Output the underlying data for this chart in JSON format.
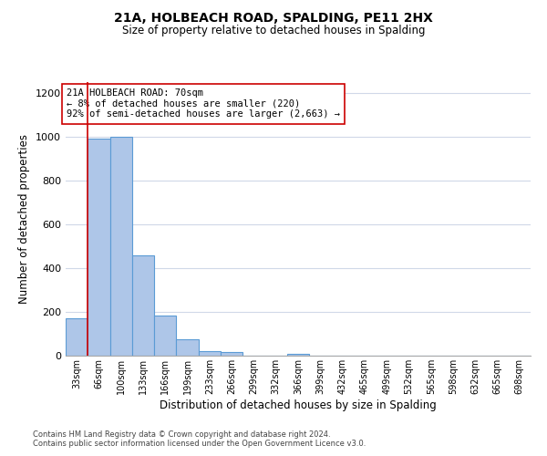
{
  "title1": "21A, HOLBEACH ROAD, SPALDING, PE11 2HX",
  "title2": "Size of property relative to detached houses in Spalding",
  "xlabel": "Distribution of detached houses by size in Spalding",
  "ylabel": "Number of detached properties",
  "bin_labels": [
    "33sqm",
    "66sqm",
    "100sqm",
    "133sqm",
    "166sqm",
    "199sqm",
    "233sqm",
    "266sqm",
    "299sqm",
    "332sqm",
    "366sqm",
    "399sqm",
    "432sqm",
    "465sqm",
    "499sqm",
    "532sqm",
    "565sqm",
    "598sqm",
    "632sqm",
    "665sqm",
    "698sqm"
  ],
  "bar_heights": [
    170,
    990,
    1000,
    460,
    185,
    75,
    22,
    18,
    0,
    0,
    10,
    0,
    0,
    0,
    0,
    0,
    0,
    0,
    0,
    0,
    0
  ],
  "bar_color": "#aec6e8",
  "bar_edge_color": "#5b9bd5",
  "property_line_x": 1,
  "property_line_color": "#cc0000",
  "annotation_line1": "21A HOLBEACH ROAD: 70sqm",
  "annotation_line2": "← 8% of detached houses are smaller (220)",
  "annotation_line3": "92% of semi-detached houses are larger (2,663) →",
  "annotation_box_color": "#ffffff",
  "annotation_box_edge": "#cc0000",
  "ylim": [
    0,
    1250
  ],
  "yticks": [
    0,
    200,
    400,
    600,
    800,
    1000,
    1200
  ],
  "footer1": "Contains HM Land Registry data © Crown copyright and database right 2024.",
  "footer2": "Contains public sector information licensed under the Open Government Licence v3.0.",
  "background_color": "#ffffff",
  "grid_color": "#d0d8e8"
}
